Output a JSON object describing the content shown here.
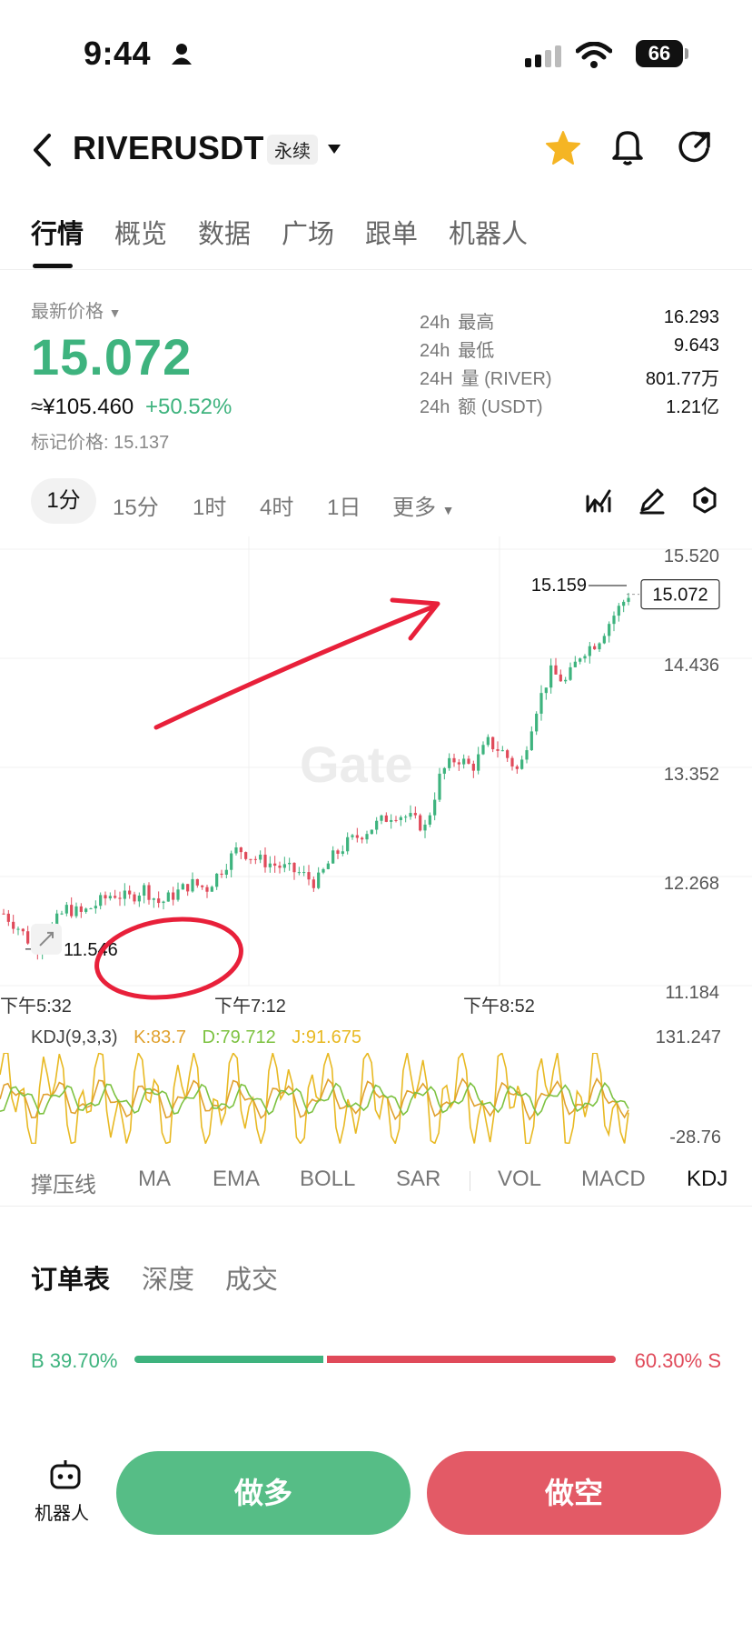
{
  "status_bar": {
    "time": "9:44",
    "battery": "66"
  },
  "header": {
    "symbol": "RIVERUSDT",
    "contract_type": "永续"
  },
  "tabs": [
    "行情",
    "概览",
    "数据",
    "广场",
    "跟单",
    "机器人"
  ],
  "price": {
    "label": "最新价格",
    "last": "15.072",
    "cny": "≈¥105.460",
    "change": "+50.52%",
    "mark": "标记价格: 15.137"
  },
  "stats": [
    {
      "period": "24h",
      "label": "最高",
      "value": "16.293"
    },
    {
      "period": "24h",
      "label": "最低",
      "value": "9.643"
    },
    {
      "period": "24H",
      "label": "量 (RIVER)",
      "value": "801.77万"
    },
    {
      "period": "24h",
      "label": "额 (USDT)",
      "value": "1.21亿"
    }
  ],
  "intervals": {
    "active": "1分",
    "others": [
      "15分",
      "1时",
      "4时",
      "1日",
      "更多"
    ]
  },
  "colors": {
    "up": "#3eb37e",
    "down": "#e04a5a",
    "k_line": "#e0a12e",
    "d_line": "#7dc241",
    "j_line": "#e8b923",
    "annotation": "#e8203a"
  },
  "chart_data": {
    "type": "candlestick",
    "y_ticks": [
      "15.520",
      "14.436",
      "13.352",
      "12.268",
      "11.184"
    ],
    "ylim": [
      11.184,
      15.52
    ],
    "x_ticks": [
      "下午5:32",
      "下午7:12",
      "下午8:52"
    ],
    "current_price_tag": "15.072",
    "high_marker": "15.159",
    "low_marker": "11.546",
    "price_path": [
      11.9,
      11.75,
      11.55,
      11.75,
      11.95,
      11.9,
      12.0,
      12.1,
      12.05,
      12.15,
      12.0,
      12.1,
      12.2,
      12.15,
      12.35,
      12.55,
      12.45,
      12.4,
      12.35,
      12.3,
      12.2,
      12.45,
      12.6,
      12.7,
      12.8,
      12.9,
      12.85,
      12.75,
      13.3,
      13.45,
      13.35,
      13.6,
      13.5,
      13.3,
      13.9,
      14.3,
      14.2,
      14.5,
      14.6,
      14.85,
      15.07
    ],
    "watermark": "Gate"
  },
  "kdj": {
    "label": "KDJ(9,3,3)",
    "k": "K:83.7",
    "d": "D:79.712",
    "j": "J:91.675",
    "y_max": "131.247",
    "y_min": "-28.76"
  },
  "indicators": [
    "撑压线",
    "MA",
    "EMA",
    "BOLL",
    "SAR",
    "VOL",
    "MACD",
    "KDJ"
  ],
  "active_indicator": "KDJ",
  "orderbook": {
    "tabs": [
      "订单表",
      "深度",
      "成交"
    ],
    "buy_pct": "B 39.70%",
    "sell_pct": "60.30% S",
    "buy_ratio": 0.397
  },
  "bottom": {
    "bot_label": "机器人",
    "long_label": "做多",
    "short_label": "做空"
  }
}
